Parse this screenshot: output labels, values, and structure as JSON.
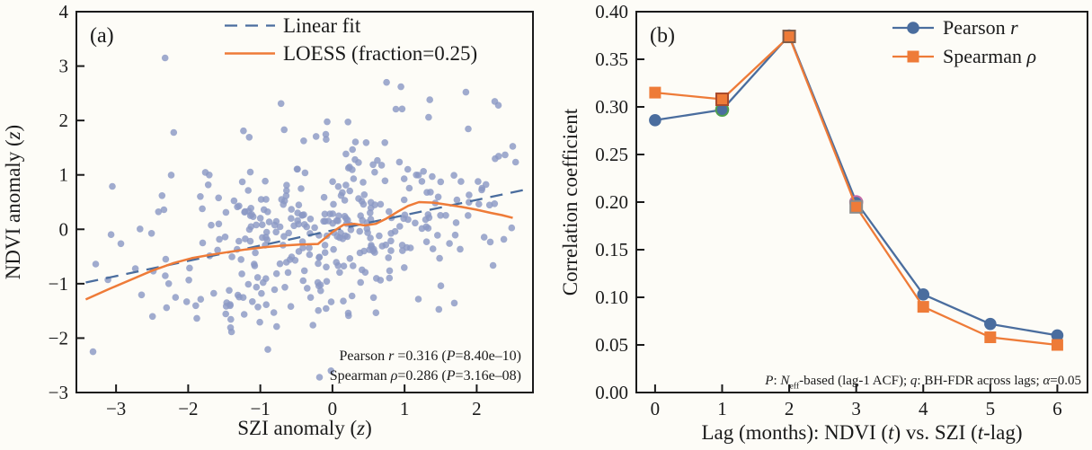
{
  "figure": {
    "background": "#fdfcf7",
    "text_color": "#1a1a1a",
    "spine_color": "#1a1a1a"
  },
  "chart_data": [
    {
      "type": "scatter",
      "panel_label": "(a)",
      "xlabel": "SZI anomaly (*z*)",
      "ylabel": "NDVI anomaly (*z*)",
      "xlim": [
        -3.55,
        2.78
      ],
      "ylim": [
        -3,
        4
      ],
      "xticks": [
        -3,
        -2,
        -1,
        0,
        1,
        2
      ],
      "xtick_labels": [
        "−3",
        "−2",
        "−1",
        "0",
        "1",
        "2"
      ],
      "yticks": [
        -3,
        -2,
        -1,
        0,
        1,
        2,
        3,
        4
      ],
      "ytick_labels": [
        "−3",
        "−2",
        "−1",
        "0",
        "1",
        "2",
        "3",
        "4"
      ],
      "grid": false,
      "legend_position": "upper-right-inside",
      "scatter": {
        "n": 360,
        "seed": 20240613,
        "x_mean": -0.1,
        "x_sd": 1.2,
        "x_range": [
          -3.42,
          2.58
        ],
        "slope": 0.3,
        "intercept": 0.02,
        "noise_sd": 0.92,
        "y_range": [
          -2.6,
          2.75
        ],
        "color": "#8b99c4",
        "opacity": 0.82,
        "radius": 3.8
      },
      "outlier_points": [
        [
          -2.32,
          3.15
        ],
        [
          -3.32,
          -2.25
        ],
        [
          -2.2,
          1.78
        ],
        [
          -0.18,
          -2.72
        ],
        [
          -0.02,
          -2.6
        ],
        [
          0.75,
          2.7
        ],
        [
          0.95,
          2.62
        ],
        [
          1.35,
          2.38
        ],
        [
          1.85,
          2.52
        ],
        [
          2.25,
          2.35
        ],
        [
          2.3,
          2.28
        ]
      ],
      "linear_fit": {
        "label": "Linear fit",
        "color": "#4a6d9e",
        "dash": [
          14,
          9
        ],
        "x_start": -3.42,
        "x_end": 2.72,
        "slope": 0.28,
        "intercept": -0.02
      },
      "loess": {
        "label": "LOESS (fraction=0.25)",
        "color": "#ee7b38",
        "points": [
          [
            -3.42,
            -1.29
          ],
          [
            -3.1,
            -1.1
          ],
          [
            -2.8,
            -0.93
          ],
          [
            -2.5,
            -0.76
          ],
          [
            -2.2,
            -0.62
          ],
          [
            -1.95,
            -0.53
          ],
          [
            -1.7,
            -0.47
          ],
          [
            -1.45,
            -0.42
          ],
          [
            -1.2,
            -0.37
          ],
          [
            -0.95,
            -0.33
          ],
          [
            -0.7,
            -0.3
          ],
          [
            -0.45,
            -0.28
          ],
          [
            -0.2,
            -0.27
          ],
          [
            0.0,
            -0.05
          ],
          [
            0.15,
            0.08
          ],
          [
            0.3,
            0.1
          ],
          [
            0.45,
            0.07
          ],
          [
            0.6,
            0.1
          ],
          [
            0.75,
            0.2
          ],
          [
            0.9,
            0.32
          ],
          [
            1.05,
            0.43
          ],
          [
            1.2,
            0.5
          ],
          [
            1.4,
            0.49
          ],
          [
            1.6,
            0.45
          ],
          [
            1.8,
            0.41
          ],
          [
            2.0,
            0.36
          ],
          [
            2.2,
            0.3
          ],
          [
            2.35,
            0.26
          ],
          [
            2.5,
            0.21
          ]
        ]
      },
      "stats_lines": [
        "Pearson *r* =0.316 (*P*=8.40e–10)",
        "Spearman *ρ*=0.286 (*P*=3.16e–08)"
      ],
      "pearson_r": 0.316,
      "pearson_P": "8.40e–10",
      "spearman_rho": 0.286,
      "spearman_P": "3.16e–08"
    },
    {
      "type": "line",
      "panel_label": "(b)",
      "xlabel": "Lag (months): NDVI (*t*) vs. SZI (*t*-lag)",
      "ylabel": "Correlation coefficient",
      "xlim": [
        -0.28,
        6.45
      ],
      "ylim": [
        0,
        0.4
      ],
      "xticks": [
        0,
        1,
        2,
        3,
        4,
        5,
        6
      ],
      "xtick_labels": [
        "0",
        "1",
        "2",
        "3",
        "4",
        "5",
        "6"
      ],
      "yticks": [
        0,
        0.05,
        0.1,
        0.15,
        0.2,
        0.25,
        0.3,
        0.35,
        0.4
      ],
      "ytick_labels": [
        "0.00",
        "0.05",
        "0.10",
        "0.15",
        "0.20",
        "0.25",
        "0.30",
        "0.35",
        "0.40"
      ],
      "grid": false,
      "legend_position": "upper-right-inside",
      "categories": [
        0,
        1,
        2,
        3,
        4,
        5,
        6
      ],
      "series": [
        {
          "name": "Pearson *r*",
          "color": "#4a6d9e",
          "marker": "circle",
          "values": [
            0.286,
            0.297,
            0.375,
            0.2,
            0.103,
            0.072,
            0.06
          ],
          "marker_edge_colors": [
            "none",
            "#4e9e50",
            "none",
            "#c66ca8",
            "none",
            "none",
            "none"
          ]
        },
        {
          "name": "Spearman *ρ*",
          "color": "#ee7b38",
          "marker": "square",
          "values": [
            0.315,
            0.308,
            0.374,
            0.195,
            0.09,
            0.058,
            0.05
          ],
          "marker_edge_colors": [
            "none",
            "#a84a2c",
            "#7d5c49",
            "#8c8c8c",
            "none",
            "none",
            "none"
          ]
        }
      ],
      "annotation": "*P*: *N*_eff_-based (lag-1 ACF); *q*: BH-FDR across lags; *α*=0.05"
    }
  ]
}
